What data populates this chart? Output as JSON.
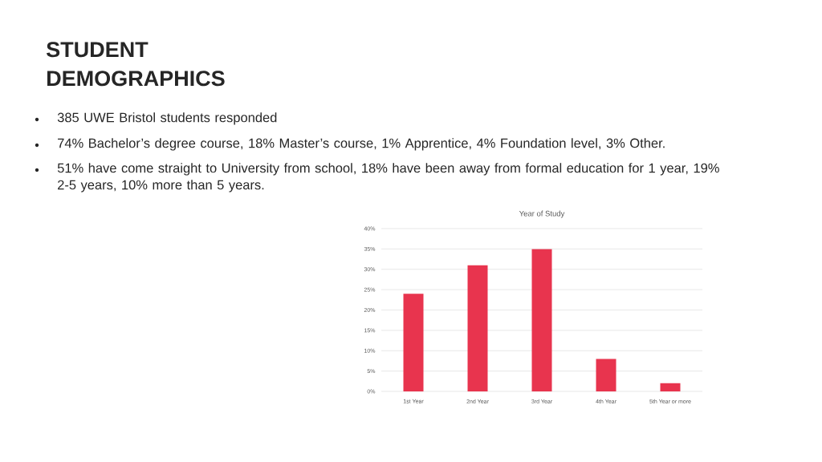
{
  "chart_data": {
    "type": "bar",
    "title": "Year of Study",
    "categories": [
      "1st Year",
      "2nd Year",
      "3rd Year",
      "4th Year",
      "5th Year or more"
    ],
    "values": [
      24,
      31,
      35,
      8,
      2
    ],
    "color": "#e8344e",
    "ylim": [
      0,
      40
    ],
    "yticks": [
      {
        "value": 0,
        "label": "0%"
      },
      {
        "value": 5,
        "label": "5%"
      },
      {
        "value": 10,
        "label": "10%"
      },
      {
        "value": 15,
        "label": "15%"
      },
      {
        "value": 20,
        "label": "20%"
      },
      {
        "value": 25,
        "label": "25%"
      },
      {
        "value": 30,
        "label": "30%"
      },
      {
        "value": 35,
        "label": "35%"
      },
      {
        "value": 40,
        "label": "40%"
      }
    ],
    "grid": "y",
    "annotations": [
      "STUDENT DEMOGRAPHICS",
      "385 UWE Bristol students responded",
      "74% Bachelor’s degree course, 18% Master’s course, 1% Apprentice, 4% Foundation level, 3% Other.",
      "51% have come straight to University from school, 18% have been away from formal education for 1 year, 19% 2-5 years, 10% more than 5 years."
    ]
  }
}
